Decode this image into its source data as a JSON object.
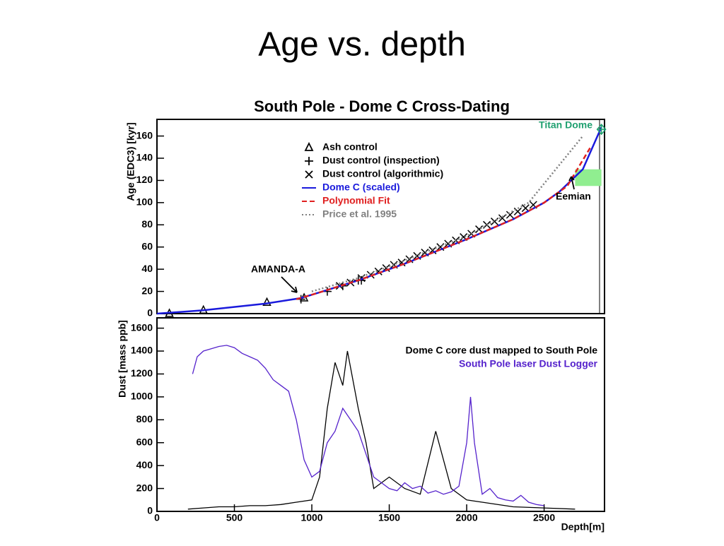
{
  "slide": {
    "title": "Age vs. depth"
  },
  "chart_data": [
    {
      "type": "line",
      "title": "South Pole - Dome C Cross-Dating",
      "y_label": "Age (EDC3) [kyr]",
      "xlim": [
        0,
        2890
      ],
      "ylim": [
        0,
        175
      ],
      "yticks": [
        0,
        20,
        40,
        60,
        80,
        100,
        120,
        140,
        160
      ],
      "annotations": [
        "AMANDA-A",
        "Eemian",
        "Titan Dome"
      ],
      "band": {
        "x": [
          2700,
          2870
        ],
        "y": [
          115,
          130
        ],
        "color": "#90ee90"
      },
      "series": [
        {
          "name": "Ash control",
          "style": "triangle",
          "color": "#000000",
          "x": [
            80,
            300,
            710,
            950
          ],
          "values": [
            0,
            3,
            10,
            14
          ]
        },
        {
          "name": "Dust control (inspection)",
          "style": "plus",
          "color": "#000000",
          "x": [
            930,
            1100,
            1200,
            1300,
            1320
          ],
          "values": [
            13,
            20,
            25,
            30,
            30
          ]
        },
        {
          "name": "Dust control (algorithmic)",
          "style": "cross",
          "color": "#000000",
          "x": [
            1180,
            1250,
            1320,
            1380,
            1430,
            1480,
            1530,
            1580,
            1630,
            1680,
            1730,
            1780,
            1830,
            1880,
            1930,
            1980,
            2030,
            2080,
            2130,
            2180,
            2230,
            2280,
            2330,
            2380,
            2430
          ],
          "values": [
            25,
            28,
            32,
            35,
            38,
            41,
            44,
            46,
            49,
            52,
            55,
            57,
            60,
            63,
            66,
            69,
            72,
            76,
            80,
            83,
            86,
            89,
            92,
            95,
            98
          ]
        },
        {
          "name": "Dome C (scaled)",
          "style": "solid",
          "color": "#1a1adc",
          "x": [
            0,
            300,
            700,
            930,
            1000,
            1300,
            1600,
            2000,
            2300,
            2500,
            2600,
            2750,
            2870
          ],
          "values": [
            0,
            3,
            9,
            14,
            17,
            30,
            45,
            67,
            85,
            100,
            110,
            130,
            168
          ]
        },
        {
          "name": "Polynomial Fit",
          "style": "dashed",
          "color": "#e02020",
          "x": [
            900,
            1000,
            1300,
            1600,
            2000,
            2300,
            2500,
            2650,
            2800
          ],
          "values": [
            13,
            17,
            30,
            45,
            67,
            85,
            100,
            115,
            150
          ]
        },
        {
          "name": "Price et al. 1995",
          "style": "dotted",
          "color": "#808080",
          "x": [
            1000,
            1300,
            1600,
            2000,
            2400,
            2750
          ],
          "values": [
            20,
            32,
            48,
            70,
            100,
            160
          ]
        },
        {
          "style": "diamond",
          "color": "#20a070",
          "x": [
            2870
          ],
          "values": [
            166
          ]
        }
      ]
    },
    {
      "type": "line",
      "y_label": "Dust [mass ppb]",
      "x_label": "Depth[m]",
      "xlim": [
        0,
        2890
      ],
      "ylim": [
        0,
        1690
      ],
      "xticks": [
        0,
        500,
        1000,
        1500,
        2000,
        2500
      ],
      "yticks": [
        0,
        200,
        400,
        600,
        800,
        1000,
        1200,
        1400,
        1600
      ],
      "series": [
        {
          "name": "Dome C core dust mapped to South Pole",
          "style": "solid",
          "color": "#000000",
          "x": [
            200,
            300,
            400,
            500,
            600,
            700,
            800,
            900,
            1000,
            1050,
            1100,
            1150,
            1200,
            1230,
            1300,
            1350,
            1400,
            1500,
            1600,
            1700,
            1800,
            1900,
            2000,
            2100,
            2300,
            2700
          ],
          "values": [
            20,
            30,
            40,
            40,
            50,
            50,
            60,
            80,
            100,
            300,
            900,
            1300,
            1100,
            1400,
            900,
            600,
            200,
            300,
            200,
            150,
            700,
            200,
            100,
            80,
            40,
            20
          ]
        },
        {
          "name": "South Pole laser Dust Logger",
          "style": "solid",
          "color": "#5522cc",
          "x": [
            230,
            260,
            300,
            350,
            400,
            450,
            500,
            550,
            600,
            650,
            700,
            750,
            800,
            850,
            900,
            950,
            1000,
            1050,
            1100,
            1150,
            1200,
            1250,
            1300,
            1350,
            1400,
            1450,
            1500,
            1550,
            1600,
            1650,
            1700,
            1750,
            1800,
            1850,
            1900,
            1950,
            2000,
            2025,
            2050,
            2100,
            2150,
            2200,
            2250,
            2300,
            2350,
            2400,
            2450,
            2500
          ],
          "values": [
            1200,
            1350,
            1400,
            1420,
            1440,
            1450,
            1430,
            1380,
            1350,
            1320,
            1250,
            1150,
            1100,
            1050,
            800,
            450,
            300,
            350,
            600,
            700,
            900,
            800,
            700,
            500,
            300,
            250,
            200,
            180,
            250,
            200,
            220,
            160,
            180,
            150,
            170,
            220,
            600,
            1000,
            600,
            150,
            200,
            120,
            100,
            90,
            140,
            80,
            60,
            50
          ]
        }
      ]
    }
  ]
}
